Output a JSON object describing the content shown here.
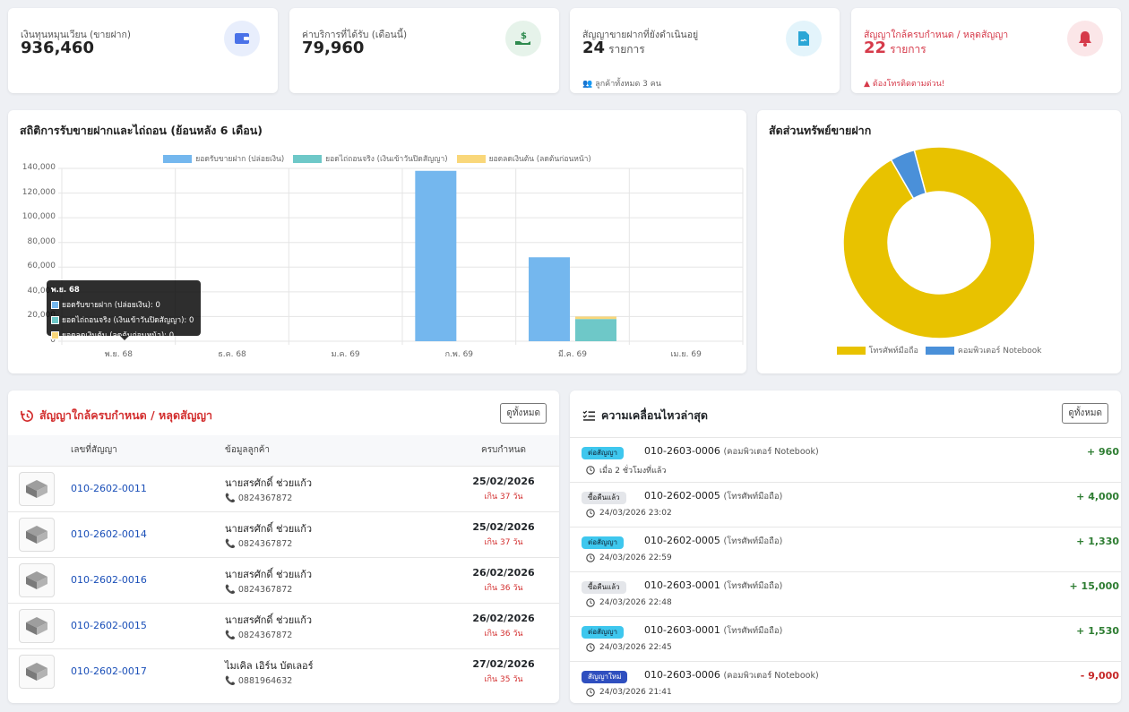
{
  "stats": [
    {
      "label": "เงินทุนหมุนเวียน (ขายฝาก)",
      "value": "936,460",
      "unit": "",
      "note": "",
      "color": "#4a72e8",
      "bg": "#e8eefc",
      "icon": "wallet-icon"
    },
    {
      "label": "ค่าบริการที่ได้รับ (เดือนนี้)",
      "value": "79,960",
      "unit": "",
      "note": "",
      "color": "#2e8a4e",
      "bg": "#e6f3ea",
      "icon": "hand-money-icon"
    },
    {
      "label": "สัญญาขายฝากที่ยังดำเนินอยู่",
      "value": "24",
      "unit": "รายการ",
      "note": "ลูกค้าทั้งหมด 3 คน",
      "color": "#2aa6d6",
      "bg": "#e3f4fb",
      "icon": "contract-icon"
    },
    {
      "label": "สัญญาใกล้ครบกำหนด / หลุดสัญญา",
      "value": "22",
      "unit": "รายการ",
      "note": "ต้องโทรติดตามด่วน!",
      "color": "#d63a4a",
      "bg": "#fbe6e8",
      "icon": "bell-icon"
    }
  ],
  "bar_chart": {
    "title": "สถิติการรับขายฝากและไถ่ถอน (ย้อนหลัง 6 เดือน)"
  },
  "donut": {
    "title": "สัดส่วนทรัพย์ขายฝาก"
  },
  "chart_data": [
    {
      "type": "bar",
      "title": "สถิติการรับขายฝากและไถ่ถอน (ย้อนหลัง 6 เดือน)",
      "categories": [
        "พ.ย. 68",
        "ธ.ค. 68",
        "ม.ค. 69",
        "ก.พ. 69",
        "มี.ค. 69",
        "เม.ย. 69"
      ],
      "series": [
        {
          "name": "ยอดรับขายฝาก (ปล่อยเงิน)",
          "values": [
            0,
            0,
            0,
            138000,
            68000,
            0
          ],
          "color": "#74b7ee"
        },
        {
          "name": "ยอดไถ่ถอนจริง (เงินเข้าวันปิดสัญญา)",
          "values": [
            0,
            0,
            0,
            0,
            18000,
            0
          ],
          "color": "#6ec8c8"
        },
        {
          "name": "ยอดลดเงินต้น (ลดต้นก่อนหน้า)",
          "values": [
            0,
            0,
            0,
            0,
            2000,
            0
          ],
          "color": "#f9d77a"
        }
      ],
      "stacked": true,
      "ylim": [
        0,
        140000
      ],
      "yticks": [
        "0",
        "20,000",
        "40,000",
        "60,000",
        "80,000",
        "100,000",
        "120,000",
        "140,000"
      ],
      "legend": "top",
      "tooltip": {
        "title": "พ.ย. 68",
        "rows": [
          "ยอดรับขายฝาก (ปล่อยเงิน): 0",
          "ยอดไถ่ถอนจริง (เงินเข้าวันปิดสัญญา): 0",
          "ยอดลดเงินต้น (ลดต้นก่อนหน้า): 0"
        ]
      }
    },
    {
      "type": "pie",
      "title": "สัดส่วนทรัพย์ขายฝาก",
      "categories": [
        "โทรศัพท์มือถือ",
        "คอมพิวเตอร์ Notebook"
      ],
      "values": [
        23,
        1
      ],
      "colors": [
        "#e8c200",
        "#4a90d9"
      ],
      "legend": "bottom"
    }
  ],
  "due": {
    "title": "สัญญาใกล้ครบกำหนด / หลุดสัญญา",
    "view_all": "ดูทั้งหมด",
    "columns": [
      "เลขที่สัญญา",
      "ข้อมูลลูกค้า",
      "ครบกำหนด"
    ],
    "rows": [
      {
        "no": "010-2602-0011",
        "name": "นายสรศักดิ์ ช่วยแก้ว",
        "phone": "0824367872",
        "date": "25/02/2026",
        "over": "เกิน 37 วัน"
      },
      {
        "no": "010-2602-0014",
        "name": "นายสรศักดิ์ ช่วยแก้ว",
        "phone": "0824367872",
        "date": "25/02/2026",
        "over": "เกิน 37 วัน"
      },
      {
        "no": "010-2602-0016",
        "name": "นายสรศักดิ์ ช่วยแก้ว",
        "phone": "0824367872",
        "date": "26/02/2026",
        "over": "เกิน 36 วัน"
      },
      {
        "no": "010-2602-0015",
        "name": "นายสรศักดิ์ ช่วยแก้ว",
        "phone": "0824367872",
        "date": "26/02/2026",
        "over": "เกิน 36 วัน"
      },
      {
        "no": "010-2602-0017",
        "name": "ไมเคิล เอิร์น บัตเลอร์",
        "phone": "0881964632",
        "date": "27/02/2026",
        "over": "เกิน 35 วัน"
      }
    ]
  },
  "activity": {
    "title": "ความเคลื่อนไหวล่าสุด",
    "view_all": "ดูทั้งหมด",
    "items": [
      {
        "badge": "ต่อสัญญา",
        "badge_bg": "#3ec7ee",
        "badge_fg": "#123",
        "no": "010-2603-0006",
        "item": "(คอมพิวเตอร์ Notebook)",
        "time": "เมื่อ 2 ชั่วโมงที่แล้ว",
        "amount": "+ 960",
        "amt_color": "#2e7d32"
      },
      {
        "badge": "ซื้อคืนแล้ว",
        "badge_bg": "#e4e6ea",
        "badge_fg": "#222",
        "no": "010-2602-0005",
        "item": "(โทรศัพท์มือถือ)",
        "time": "24/03/2026 23:02",
        "amount": "+ 4,000",
        "amt_color": "#2e7d32"
      },
      {
        "badge": "ต่อสัญญา",
        "badge_bg": "#3ec7ee",
        "badge_fg": "#123",
        "no": "010-2602-0005",
        "item": "(โทรศัพท์มือถือ)",
        "time": "24/03/2026 22:59",
        "amount": "+ 1,330",
        "amt_color": "#2e7d32"
      },
      {
        "badge": "ซื้อคืนแล้ว",
        "badge_bg": "#e4e6ea",
        "badge_fg": "#222",
        "no": "010-2603-0001",
        "item": "(โทรศัพท์มือถือ)",
        "time": "24/03/2026 22:48",
        "amount": "+ 15,000",
        "amt_color": "#2e7d32"
      },
      {
        "badge": "ต่อสัญญา",
        "badge_bg": "#3ec7ee",
        "badge_fg": "#123",
        "no": "010-2603-0001",
        "item": "(โทรศัพท์มือถือ)",
        "time": "24/03/2026 22:45",
        "amount": "+ 1,530",
        "amt_color": "#2e7d32"
      },
      {
        "badge": "สัญญาใหม่",
        "badge_bg": "#2f4fbf",
        "badge_fg": "#fff",
        "no": "010-2603-0006",
        "item": "(คอมพิวเตอร์ Notebook)",
        "time": "24/03/2026 21:41",
        "amount": "- 9,000",
        "amt_color": "#c62828"
      }
    ]
  }
}
